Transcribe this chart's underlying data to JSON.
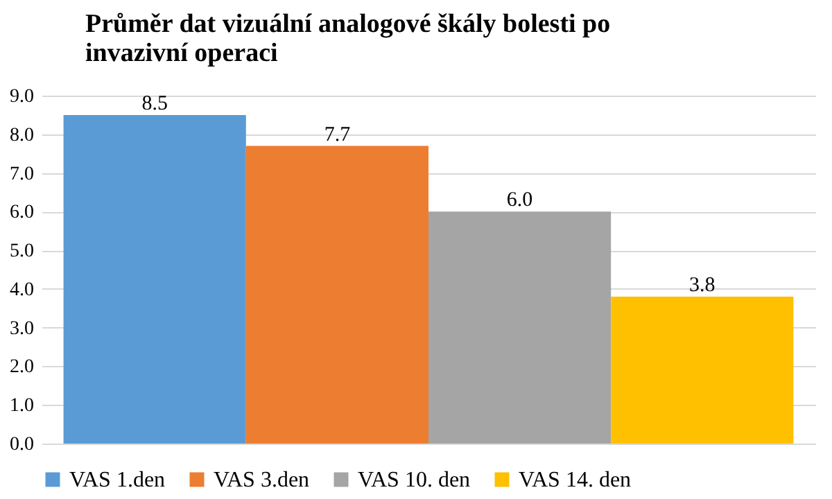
{
  "chart_data": {
    "type": "bar",
    "title": "Průměr dat vizuální analogové škály bolesti po invazivní operaci",
    "categories": [
      null
    ],
    "series": [
      {
        "name": "VAS 1.den",
        "color": "#5b9bd5",
        "values": [
          8.5
        ]
      },
      {
        "name": "VAS 3.den",
        "color": "#ed7d31",
        "values": [
          7.7
        ]
      },
      {
        "name": "VAS 10. den",
        "color": "#a5a5a5",
        "values": [
          6.0
        ]
      },
      {
        "name": "VAS 14. den",
        "color": "#ffc000",
        "values": [
          3.8
        ]
      }
    ],
    "ylim": [
      0,
      9
    ],
    "yticks": [
      {
        "value": 0,
        "label": "0.0"
      },
      {
        "value": 1,
        "label": "1.0"
      },
      {
        "value": 2,
        "label": "2.0"
      },
      {
        "value": 3,
        "label": "3.0"
      },
      {
        "value": 4,
        "label": "4.0"
      },
      {
        "value": 5,
        "label": "5.0"
      },
      {
        "value": 6,
        "label": "6.0"
      },
      {
        "value": 7,
        "label": "7.0"
      },
      {
        "value": 8,
        "label": "8.0"
      },
      {
        "value": 9,
        "label": "9.0"
      }
    ],
    "value_labels": [
      "8.5",
      "7.7",
      "6.0",
      "3.8"
    ],
    "grid": "y",
    "legend": "bottom"
  }
}
